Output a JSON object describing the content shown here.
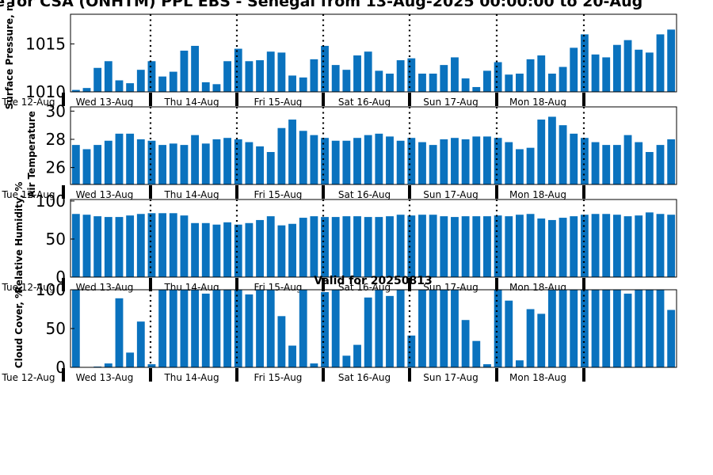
{
  "title": "se for CSA (ONHTM) PPL EBS  - Senegal from 13-Aug-2025 00:00:00 to 20-Aug",
  "valid_label": "Valid for 20250813",
  "colors": {
    "bar": "#0a72be",
    "axis": "#000000",
    "background": "#ffffff"
  },
  "day_labels": [
    "Tue 12-Aug",
    "Wed 13-Aug",
    "Thu 14-Aug",
    "Fri 15-Aug",
    "Sat 16-Aug",
    "Sun 17-Aug",
    "Mon 18-Aug"
  ],
  "chart_data": [
    {
      "type": "bar",
      "ylabel": "Surface Pressure, m",
      "ylim": [
        1010,
        1018.1
      ],
      "yticks": [
        1010,
        1015
      ],
      "values": [
        1010.2,
        1010.4,
        1012.5,
        1013.2,
        1011.2,
        1010.9,
        1012.3,
        1013.2,
        1011.6,
        1012.1,
        1014.3,
        1014.8,
        1011.0,
        1010.8,
        1013.2,
        1014.5,
        1013.2,
        1013.3,
        1014.2,
        1014.1,
        1011.7,
        1011.5,
        1013.4,
        1014.8,
        1012.8,
        1012.3,
        1013.8,
        1014.2,
        1012.2,
        1011.9,
        1013.3,
        1013.5,
        1011.9,
        1011.9,
        1012.8,
        1013.6,
        1011.4,
        1010.5,
        1012.2,
        1013.1,
        1011.8,
        1011.9,
        1013.4,
        1013.8,
        1011.9,
        1012.6,
        1014.6,
        1016.0,
        1013.9,
        1013.6,
        1014.9,
        1015.4,
        1014.4,
        1014.1,
        1016.0,
        1016.5
      ],
      "grid": false
    },
    {
      "type": "bar",
      "ylabel": "Air Temperature",
      "ylim": [
        24.8,
        30.3
      ],
      "yticks": [
        26,
        28,
        30
      ],
      "values": [
        27.6,
        27.3,
        27.6,
        27.9,
        28.4,
        28.4,
        28.0,
        27.9,
        27.6,
        27.7,
        27.6,
        28.3,
        27.7,
        28.0,
        28.1,
        28.0,
        27.8,
        27.5,
        27.1,
        28.8,
        29.4,
        28.6,
        28.3,
        28.1,
        27.9,
        27.9,
        28.1,
        28.3,
        28.4,
        28.2,
        27.9,
        28.1,
        27.8,
        27.6,
        28.0,
        28.1,
        28.0,
        28.2,
        28.2,
        28.1,
        27.8,
        27.3,
        27.4,
        29.4,
        29.6,
        29.0,
        28.4,
        28.1,
        27.8,
        27.6,
        27.6,
        28.3,
        27.8,
        27.1,
        27.6,
        28.0
      ],
      "grid": false
    },
    {
      "type": "bar",
      "ylabel": "Relative Humidity, %",
      "ylim": [
        0,
        102
      ],
      "yticks": [
        0,
        50,
        100
      ],
      "values": [
        83,
        82,
        80,
        79,
        79,
        81,
        83,
        84,
        84,
        84,
        81,
        71,
        71,
        69,
        72,
        69,
        71,
        75,
        80,
        68,
        70,
        78,
        80,
        79,
        79,
        80,
        80,
        79,
        79,
        80,
        82,
        81,
        82,
        82,
        80,
        79,
        80,
        80,
        80,
        81,
        80,
        82,
        83,
        77,
        75,
        78,
        80,
        82,
        83,
        83,
        82,
        80,
        81,
        85,
        83,
        82
      ],
      "grid": false
    },
    {
      "type": "bar",
      "ylabel": "Cloud Cover, %",
      "ylim": [
        0,
        100
      ],
      "yticks": [
        0,
        50,
        100
      ],
      "values": [
        100,
        0,
        1,
        5,
        89,
        19,
        59,
        4,
        100,
        100,
        100,
        100,
        95,
        100,
        100,
        100,
        94,
        100,
        100,
        66,
        28,
        100,
        5,
        97,
        100,
        15,
        29,
        90,
        100,
        92,
        100,
        41,
        100,
        100,
        100,
        100,
        61,
        34,
        4,
        100,
        86,
        9,
        75,
        69,
        100,
        100,
        100,
        100,
        100,
        100,
        100,
        95,
        100,
        100,
        100,
        74
      ],
      "grid": false
    }
  ]
}
